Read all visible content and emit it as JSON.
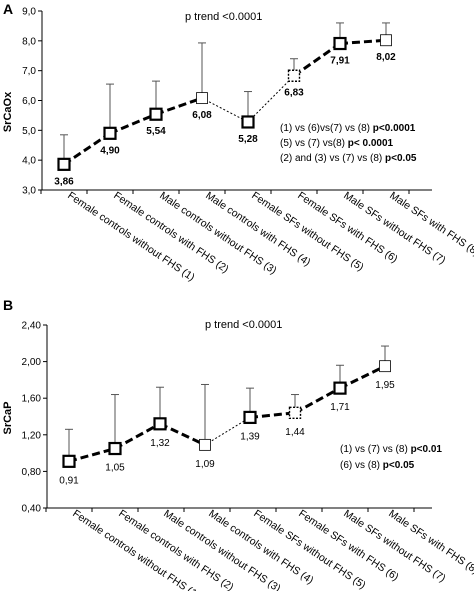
{
  "chart_data": [
    {
      "type": "line",
      "panel": "A",
      "title": "p trend <0.0001",
      "ylabel": "SrCaOx",
      "xlabel": "",
      "ylim": [
        3.0,
        9.0
      ],
      "yticks": [
        "3,0",
        "4,0",
        "5,0",
        "6,0",
        "7,0",
        "8,0",
        "9,0"
      ],
      "ytick_values": [
        3,
        4,
        5,
        6,
        7,
        8,
        9
      ],
      "categories": [
        "Female controls without FHS (1)",
        "Female controls with FHS (2)",
        "Male controls without FHS (3)",
        "Male controls with FHS (4)",
        "Female SFs without FHS (5)",
        "Female SFs with FHS (6)",
        "Male SFs without FHS (7)",
        "Male SFs with FHS (8)"
      ],
      "values": [
        3.86,
        4.9,
        5.54,
        6.08,
        5.28,
        6.83,
        7.91,
        8.02
      ],
      "value_labels": [
        "3,86",
        "4,90",
        "5,54",
        "6,08",
        "5,28",
        "6,83",
        "7,91",
        "8,02"
      ],
      "error_upper": [
        4.85,
        6.55,
        6.65,
        7.93,
        6.3,
        7.4,
        8.6,
        8.6
      ],
      "annotations": [
        [
          "(1) vs (6)vs(7) vs (8) ",
          "p<0.0001"
        ],
        [
          "(5) vs (7) vs(8) ",
          "p< 0.0001"
        ],
        [
          "(2) and (3) vs (7) vs (8) ",
          "p<0.05"
        ]
      ]
    },
    {
      "type": "line",
      "panel": "B",
      "title": "p trend <0.0001",
      "ylabel": "SrCaP",
      "xlabel": "",
      "ylim": [
        0.4,
        2.4
      ],
      "yticks": [
        "0,40",
        "0,80",
        "1,20",
        "1,60",
        "2,00",
        "2,40"
      ],
      "ytick_values": [
        0.4,
        0.8,
        1.2,
        1.6,
        2.0,
        2.4
      ],
      "categories": [
        "Female controls without FHS (1)",
        "Female controls with FHS (2)",
        "Male controls without FHS (3)",
        "Male controls with FHS (4)",
        "Female SFs without FHS (5)",
        "Female SFs with FHS (6)",
        "Male SFs without FHS (7)",
        "Male SFs with FHS (8)"
      ],
      "values": [
        0.91,
        1.05,
        1.32,
        1.09,
        1.39,
        1.44,
        1.71,
        1.95
      ],
      "value_labels": [
        "0,91",
        "1,05",
        "1,32",
        "1,09",
        "1,39",
        "1,44",
        "1,71",
        "1,95"
      ],
      "error_upper": [
        1.26,
        1.64,
        1.72,
        1.75,
        1.71,
        1.64,
        1.96,
        2.17
      ],
      "annotations": [
        [
          "(1) vs (7) vs (8) ",
          "p<0.01"
        ],
        [
          "(6) vs (8) ",
          "p<0.05"
        ]
      ]
    }
  ],
  "colors": {
    "line": "#000000",
    "marker_fill": "#ffffff",
    "marker_fill_dark": "#555555"
  }
}
